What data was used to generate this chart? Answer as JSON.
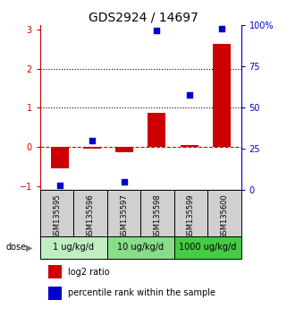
{
  "title": "GDS2924 / 14697",
  "samples": [
    "GSM135595",
    "GSM135596",
    "GSM135597",
    "GSM135598",
    "GSM135599",
    "GSM135600"
  ],
  "log2_ratio": [
    -0.55,
    -0.05,
    -0.13,
    0.88,
    0.04,
    2.62
  ],
  "percentile_rank": [
    3.0,
    30.0,
    5.0,
    97.0,
    58.0,
    98.0
  ],
  "dose_groups": [
    {
      "label": "1 ug/kg/d",
      "n_samples": 2,
      "color": "#c0eec0"
    },
    {
      "label": "10 ug/kg/d",
      "n_samples": 2,
      "color": "#88dd88"
    },
    {
      "label": "1000 ug/kg/d",
      "n_samples": 2,
      "color": "#44cc44"
    }
  ],
  "ylim_left": [
    -1.1,
    3.1
  ],
  "ylim_right": [
    0,
    100
  ],
  "left_ticks": [
    -1,
    0,
    1,
    2,
    3
  ],
  "right_ticks": [
    0,
    25,
    50,
    75,
    100
  ],
  "right_tick_labels": [
    "0",
    "25",
    "50",
    "75",
    "100%"
  ],
  "dotted_lines": [
    1.0,
    2.0
  ],
  "dashed_line": 0.0,
  "bar_color": "#cc0000",
  "dot_color": "#0000cc",
  "bar_width": 0.55,
  "dot_size": 18,
  "legend_bar_label": "log2 ratio",
  "legend_dot_label": "percentile rank within the sample",
  "dose_label": "dose",
  "left_axis_color": "#cc0000",
  "right_axis_color": "#0000cc",
  "sample_bg_color": "#d0d0d0"
}
